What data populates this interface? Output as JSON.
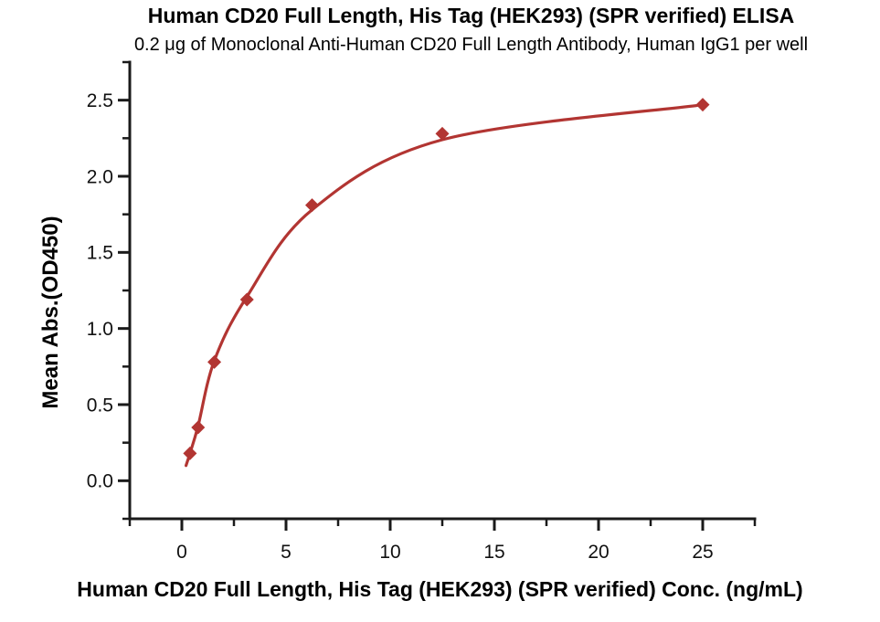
{
  "chart_data": {
    "type": "scatter",
    "title": "Human CD20 Full Length, His Tag (HEK293) (SPR verified) ELISA",
    "subtitle": "0.2 μg of Monoclonal Anti-Human CD20 Full Length Antibody, Human IgG1 per well",
    "xlabel": "Human CD20 Full Length, His Tag (HEK293) (SPR verified) Conc. (ng/mL)",
    "ylabel": "Mean Abs.(OD450)",
    "x": [
      0.39,
      0.78,
      1.56,
      3.125,
      6.25,
      12.5,
      25
    ],
    "y": [
      0.18,
      0.35,
      0.78,
      1.19,
      1.81,
      2.28,
      2.47
    ],
    "fit_curve": [
      [
        0.2,
        0.1
      ],
      [
        0.39,
        0.18
      ],
      [
        0.78,
        0.36
      ],
      [
        1.56,
        0.79
      ],
      [
        3.125,
        1.21
      ],
      [
        6.25,
        1.78
      ],
      [
        12.5,
        2.24
      ],
      [
        25,
        2.47
      ]
    ],
    "xlim": [
      -2.5,
      27.5
    ],
    "ylim": [
      -0.25,
      2.75
    ],
    "x_ticks": [
      0,
      5,
      10,
      15,
      20,
      25
    ],
    "x_tick_labels": [
      "0",
      "5",
      "10",
      "15",
      "20",
      "25"
    ],
    "x_minor_ticks": [
      -2.5,
      2.5,
      7.5,
      12.5,
      17.5,
      22.5,
      27.5
    ],
    "y_ticks": [
      0,
      0.5,
      1,
      1.5,
      2,
      2.5
    ],
    "y_tick_labels": [
      "0.0",
      "0.5",
      "1.0",
      "1.5",
      "2.0",
      "2.5"
    ],
    "y_minor_ticks": [
      -0.25,
      0.25,
      0.75,
      1.25,
      1.75,
      2.25,
      2.75
    ],
    "grid": false,
    "legend": false,
    "marker": "diamond",
    "colors": {
      "series": "#b23532",
      "axis": "#1a1a1a",
      "text": "#111111",
      "background": "#ffffff"
    }
  }
}
